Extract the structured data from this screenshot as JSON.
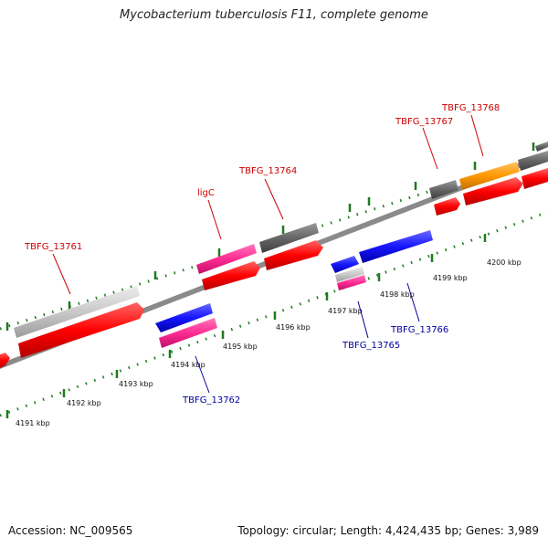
{
  "title": "Mycobacterium tuberculosis F11, complete genome",
  "footer": {
    "accession": "Accession: NC_009565",
    "summary": "Topology: circular; Length: 4,424,435 bp; Genes: 3,989"
  },
  "colors": {
    "forward_label": "#cc0000",
    "reverse_label": "#000099",
    "cds": "#ff0000",
    "pink": "#ff3399",
    "blue": "#1a1aff",
    "gray_dark": "#666666",
    "gray_light": "#c8c8c8",
    "orange": "#ff9900",
    "tick": "#1f7a1f"
  },
  "scale_labels": [
    "4191 kbp",
    "4192 kbp",
    "4193 kbp",
    "4194 kbp",
    "4195 kbp",
    "4196 kbp",
    "4197 kbp",
    "4198 kbp",
    "4199 kbp",
    "4200 kbp"
  ],
  "forward_genes": [
    {
      "name": "TBFG_13761",
      "label": "TBFG_13761"
    },
    {
      "name": "ligC",
      "label": "ligC"
    },
    {
      "name": "TBFG_13764",
      "label": "TBFG_13764"
    },
    {
      "name": "TBFG_13767",
      "label": "TBFG_13767"
    },
    {
      "name": "TBFG_13768",
      "label": "TBFG_13768"
    }
  ],
  "reverse_genes": [
    {
      "name": "TBFG_13762",
      "label": "TBFG_13762"
    },
    {
      "name": "TBFG_13765",
      "label": "TBFG_13765"
    },
    {
      "name": "TBFG_13766",
      "label": "TBFG_13766"
    }
  ]
}
